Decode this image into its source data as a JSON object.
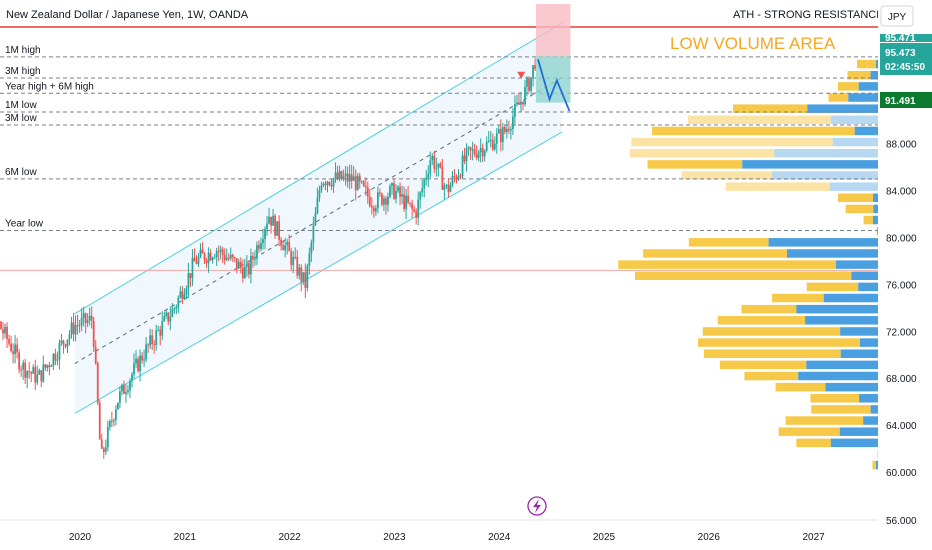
{
  "chart_data": {
    "type": "candlestick",
    "title": "New Zealand Dollar / Japanese Yen, 1W, OANDA",
    "currency": "JPY",
    "y_ticks": [
      "60.000",
      "64.000",
      "68.000",
      "72.000",
      "76.000",
      "80.000",
      "84.000",
      "88.000",
      "56.000"
    ],
    "x_ticks": [
      "2020",
      "2021",
      "2022",
      "2023",
      "2024",
      "2025",
      "2026",
      "2027"
    ],
    "levels": [
      {
        "label": "1M high",
        "value": 95.4
      },
      {
        "label": "3M high",
        "value": 93.6
      },
      {
        "label": "Year high + 6M high",
        "value": 92.3
      },
      {
        "label": "1M low",
        "value": 90.7
      },
      {
        "label": "3M low",
        "value": 89.6
      },
      {
        "label": "6M low",
        "value": 85.0
      },
      {
        "label": "Year low",
        "value": 80.6
      }
    ],
    "resistance_label": "ATH - STRONG RESISTANCE LINE",
    "annotation": "LOW VOLUME AREA",
    "price_tags": [
      {
        "value": "95.473",
        "sub": "02:45:50"
      },
      {
        "value": "91.491"
      }
    ],
    "cut_tag": "95.471",
    "colors": {
      "up": "#26a69a",
      "down": "#ef5350",
      "channel": "#4dd0e1",
      "vp_up": "#f7c948",
      "vp_down": "#4a9fe0",
      "resistance": "#e53935"
    }
  }
}
